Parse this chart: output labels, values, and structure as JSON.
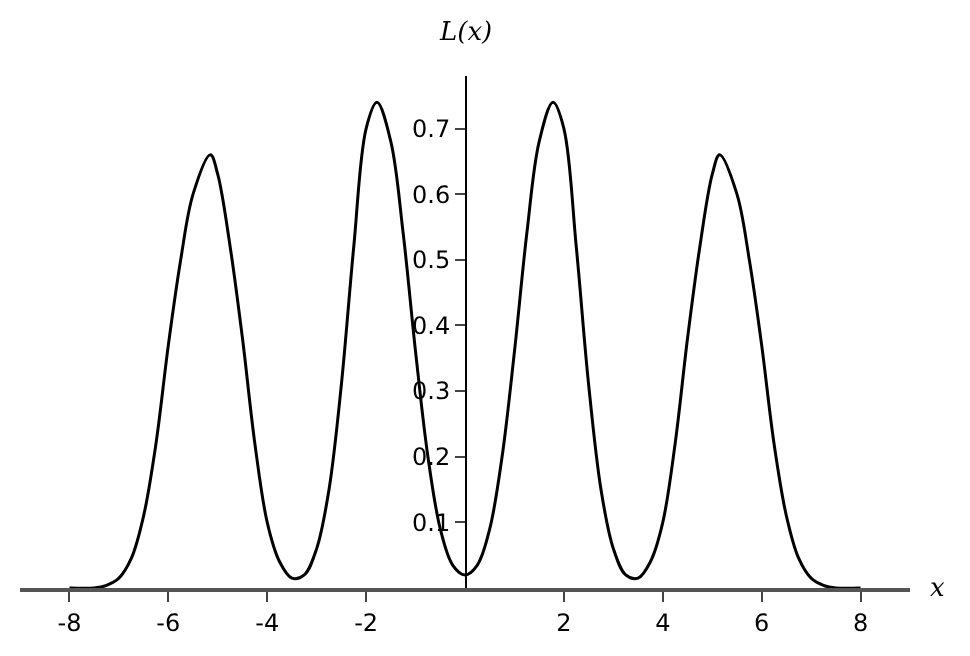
{
  "chart_data": {
    "type": "line",
    "xlabel": "x",
    "ylabel": "L(x)",
    "x": [
      -8,
      -7.5,
      -7.25,
      -7,
      -6.75,
      -6.5,
      -6.25,
      -6,
      -5.75,
      -5.5,
      -5.15,
      -5,
      -4.75,
      -4.5,
      -4.25,
      -4,
      -3.75,
      -3.5,
      -3.25,
      -3,
      -2.75,
      -2.5,
      -2.25,
      -2,
      -1.78,
      -1.5,
      -1.25,
      -1,
      -0.75,
      -0.5,
      -0.25,
      0,
      0.25,
      0.5,
      0.75,
      1,
      1.25,
      1.5,
      1.78,
      2,
      2.25,
      2.5,
      2.75,
      3,
      3.25,
      3.5,
      3.75,
      4,
      4.25,
      4.5,
      4.75,
      5,
      5.15,
      5.5,
      5.75,
      6,
      6.25,
      6.5,
      6.75,
      7,
      7.25,
      7.5,
      8
    ],
    "series": [
      {
        "color": "#000000",
        "values": [
          0,
          0,
          0.004,
          0.015,
          0.045,
          0.11,
          0.22,
          0.37,
          0.5,
          0.6,
          0.66,
          0.63,
          0.52,
          0.38,
          0.22,
          0.1,
          0.04,
          0.015,
          0.02,
          0.06,
          0.15,
          0.31,
          0.52,
          0.7,
          0.74,
          0.68,
          0.54,
          0.36,
          0.2,
          0.09,
          0.035,
          0.02,
          0.035,
          0.09,
          0.2,
          0.36,
          0.54,
          0.68,
          0.74,
          0.7,
          0.52,
          0.31,
          0.15,
          0.06,
          0.02,
          0.015,
          0.04,
          0.1,
          0.22,
          0.38,
          0.52,
          0.63,
          0.66,
          0.6,
          0.5,
          0.37,
          0.22,
          0.11,
          0.045,
          0.015,
          0.004,
          0,
          0
        ]
      }
    ],
    "xlim": [
      -9,
      9
    ],
    "ylim": [
      0,
      0.78
    ],
    "xticks": [
      -8,
      -6,
      -4,
      -2,
      2,
      4,
      6,
      8
    ],
    "yticks": [
      0.1,
      0.2,
      0.3,
      0.4,
      0.5,
      0.6,
      0.7
    ],
    "marker": "none",
    "line_style": "solid"
  }
}
